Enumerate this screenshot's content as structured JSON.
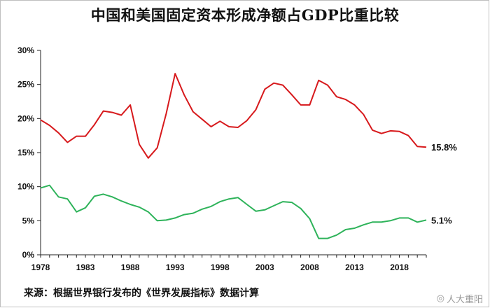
{
  "chart_data": {
    "type": "line",
    "title": "中国和美国固定资本形成净额占GDP比重比较",
    "x": [
      1978,
      1979,
      1980,
      1981,
      1982,
      1983,
      1984,
      1985,
      1986,
      1987,
      1988,
      1989,
      1990,
      1991,
      1992,
      1993,
      1994,
      1995,
      1996,
      1997,
      1998,
      1999,
      2000,
      2001,
      2002,
      2003,
      2004,
      2005,
      2006,
      2007,
      2008,
      2009,
      2010,
      2011,
      2012,
      2013,
      2014,
      2015,
      2016,
      2017,
      2018,
      2019,
      2020,
      2021
    ],
    "xticks": [
      "1978",
      "1983",
      "1988",
      "1993",
      "1998",
      "2003",
      "2008",
      "2013",
      "2018"
    ],
    "xtick_values": [
      1978,
      1983,
      1988,
      1993,
      1998,
      2003,
      2008,
      2013,
      2018
    ],
    "yticks": [
      "0%",
      "5%",
      "10%",
      "15%",
      "20%",
      "25%",
      "30%"
    ],
    "ylim": [
      0,
      30
    ],
    "xlim": [
      1978,
      2021
    ],
    "series": [
      {
        "color": "#d7191c",
        "end_label": "15.8%",
        "values": [
          19.8,
          19.0,
          17.9,
          16.5,
          17.4,
          17.4,
          19.1,
          21.1,
          20.9,
          20.5,
          22.0,
          16.2,
          14.2,
          15.7,
          20.7,
          26.6,
          23.5,
          21.0,
          19.9,
          18.8,
          19.6,
          18.8,
          18.7,
          19.7,
          21.3,
          24.3,
          25.2,
          24.9,
          23.5,
          22.0,
          22.0,
          25.6,
          24.9,
          23.2,
          22.8,
          22.0,
          20.6,
          18.3,
          17.8,
          18.2,
          18.1,
          17.5,
          15.9,
          15.8
        ]
      },
      {
        "color": "#2eb35a",
        "end_label": "5.1%",
        "values": [
          9.8,
          10.2,
          8.5,
          8.2,
          6.3,
          6.9,
          8.6,
          8.9,
          8.5,
          7.9,
          7.4,
          7.0,
          6.3,
          5.0,
          5.1,
          5.4,
          5.9,
          6.1,
          6.7,
          7.1,
          7.8,
          8.2,
          8.4,
          7.4,
          6.4,
          6.6,
          7.2,
          7.8,
          7.7,
          6.8,
          5.3,
          2.4,
          2.4,
          2.9,
          3.7,
          3.9,
          4.4,
          4.8,
          4.8,
          5.0,
          5.4,
          5.4,
          4.8,
          5.1
        ]
      }
    ],
    "grid": false
  },
  "footer": {
    "source": "来源：根据世界银行发布的《世界发展指标》数据计算",
    "watermark": "人大重阳"
  }
}
